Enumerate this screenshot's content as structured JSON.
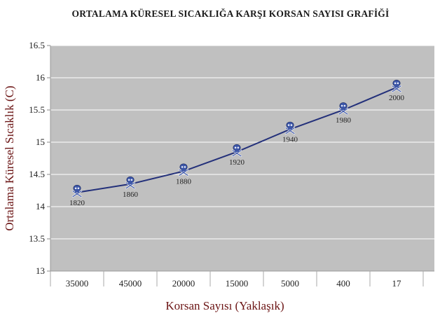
{
  "chart_data": {
    "type": "line",
    "title": "ORTALAMA KÜRESEL SICAKLIĞA KARŞI KORSAN SAYISI GRAFİĞİ",
    "xlabel": "Korsan Sayısı (Yaklaşık)",
    "ylabel": "Ortalama Küresel Sıcaklık (C)",
    "categories": [
      "35000",
      "45000",
      "20000",
      "15000",
      "5000",
      "400",
      "17"
    ],
    "series": [
      {
        "values": [
          14.22,
          14.35,
          14.55,
          14.85,
          15.2,
          15.5,
          15.85
        ],
        "point_labels": [
          "1820",
          "1860",
          "1880",
          "1920",
          "1940",
          "1980",
          "2000"
        ]
      }
    ],
    "ylim": [
      13,
      16.5
    ],
    "y_ticks": [
      "13",
      "13.5",
      "14",
      "14.5",
      "15",
      "15.5",
      "16",
      "16.5"
    ],
    "grid": true,
    "legend": "none",
    "marker_icon": "skull-crossbones-icon",
    "colors": {
      "plot_background": "#c0c0c0",
      "line": "#23307a",
      "marker": "#3c56a8",
      "gridline": "#ffffff",
      "axis_label": "#6b1414"
    }
  }
}
